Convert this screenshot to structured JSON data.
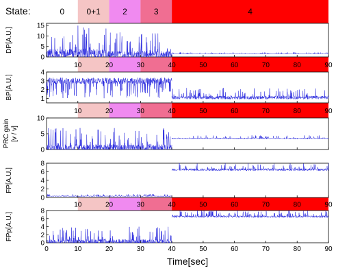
{
  "header": {
    "label": "State:"
  },
  "xlabel": "Time[sec]",
  "x_ticks": [
    0,
    10,
    20,
    30,
    40,
    50,
    60,
    70,
    80,
    90
  ],
  "xlim": [
    0,
    90
  ],
  "state_bands": [
    {
      "label": "0",
      "x0": 0,
      "x1": 10,
      "color": "#ffffff"
    },
    {
      "label": "0+1",
      "x0": 10,
      "x1": 20,
      "color": "#f5c5c5"
    },
    {
      "label": "2",
      "x0": 20,
      "x1": 30,
      "color": "#f08af0"
    },
    {
      "label": "3",
      "x0": 30,
      "x1": 40,
      "color": "#f06e92"
    },
    {
      "label": "4",
      "x0": 40,
      "x1": 90,
      "color": "#ff0000"
    }
  ],
  "colors": {
    "trace": "#2222dd"
  },
  "chart_data": [
    {
      "type": "line",
      "ylabel": "DP[A.U.]",
      "ylim": [
        0,
        16
      ],
      "y_ticks": [
        0,
        5,
        10,
        15
      ],
      "segments": [
        {
          "x0": 0,
          "x1": 20,
          "base": 1.5,
          "spike_max": 15
        },
        {
          "x0": 20,
          "x1": 40,
          "base": 1.0,
          "spike_max": 12
        },
        {
          "x0": 40,
          "x1": 90,
          "base": 1.5,
          "spike_max": 2.2
        }
      ]
    },
    {
      "type": "line",
      "ylabel": "BP[A.U.]",
      "ylim": [
        0.5,
        4
      ],
      "y_ticks": [
        1,
        2,
        3,
        4
      ],
      "segments": [
        {
          "x0": 0,
          "x1": 40,
          "base": 3.0,
          "spike_max": 1.0
        },
        {
          "x0": 40,
          "x1": 90,
          "base": 1.1,
          "spike_max": 2.2
        }
      ]
    },
    {
      "type": "line",
      "ylabel": "PRC gain",
      "ylabel2": "[v / v]",
      "ylim": [
        0,
        10
      ],
      "y_ticks": [
        0,
        5,
        10
      ],
      "segments": [
        {
          "x0": 0,
          "x1": 40,
          "base": 0.5,
          "spike_max": 7
        },
        {
          "x0": 40,
          "x1": 90,
          "base": 3.5,
          "spike_max": 4.5
        }
      ]
    },
    {
      "type": "line",
      "ylabel": "FP[A.U.]",
      "ylim": [
        0,
        8
      ],
      "y_ticks": [
        0,
        2,
        4,
        6,
        8
      ],
      "segments": [
        {
          "x0": 0,
          "x1": 40,
          "base": 0.3,
          "spike_max": 0.8
        },
        {
          "x0": 40,
          "x1": 90,
          "base": 6.5,
          "spike_max": 8
        }
      ]
    },
    {
      "type": "line",
      "ylabel": "FPp[A.U.]",
      "ylim": [
        0,
        8
      ],
      "y_ticks": [
        0,
        2,
        4,
        6,
        8
      ],
      "segments": [
        {
          "x0": 0,
          "x1": 40,
          "base": 0.2,
          "spike_max": 4
        },
        {
          "x0": 40,
          "x1": 90,
          "base": 6.5,
          "spike_max": 8
        }
      ]
    }
  ]
}
